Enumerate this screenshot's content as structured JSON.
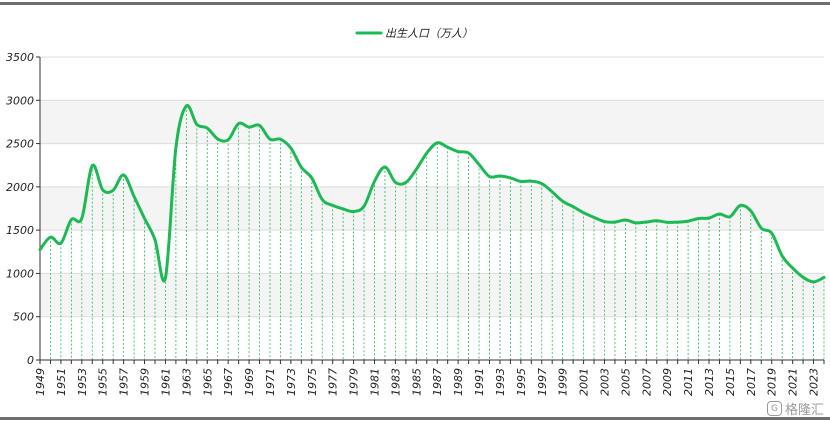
{
  "chart_data": {
    "type": "line",
    "title": "",
    "xlabel": "",
    "ylabel": "",
    "ylim": [
      0,
      3500
    ],
    "yticks": [
      0,
      500,
      1000,
      1500,
      2000,
      2500,
      3000,
      3500
    ],
    "x_tick_labels": [
      "1949",
      "1951",
      "1953",
      "1955",
      "1957",
      "1959",
      "1961",
      "1963",
      "1965",
      "1967",
      "1969",
      "1971",
      "1973",
      "1975",
      "1977",
      "1979",
      "1981",
      "1983",
      "1985",
      "1987",
      "1989",
      "1991",
      "1993",
      "1995",
      "1997",
      "1999",
      "2001",
      "2003",
      "2005",
      "2007",
      "2009",
      "2011",
      "2013",
      "2015",
      "2017",
      "2019",
      "2021",
      "2023"
    ],
    "legend": {
      "position": "top-center"
    },
    "grid": true,
    "series": [
      {
        "name": "出生人口（万人）",
        "color": "#1db954",
        "x": [
          1949,
          1950,
          1951,
          1952,
          1953,
          1954,
          1955,
          1956,
          1957,
          1958,
          1959,
          1960,
          1961,
          1962,
          1963,
          1964,
          1965,
          1966,
          1967,
          1968,
          1969,
          1970,
          1971,
          1972,
          1973,
          1974,
          1975,
          1976,
          1977,
          1978,
          1979,
          1980,
          1981,
          1982,
          1983,
          1984,
          1985,
          1986,
          1987,
          1988,
          1989,
          1990,
          1991,
          1992,
          1993,
          1994,
          1995,
          1996,
          1997,
          1998,
          1999,
          2000,
          2001,
          2002,
          2003,
          2004,
          2005,
          2006,
          2007,
          2008,
          2009,
          2010,
          2011,
          2012,
          2013,
          2014,
          2015,
          2016,
          2017,
          2018,
          2019,
          2020,
          2021,
          2022,
          2023,
          2024
        ],
        "values": [
          1275,
          1419,
          1349,
          1622,
          1637,
          2245,
          1965,
          1961,
          2138,
          1889,
          1635,
          1389,
          949,
          2451,
          2934,
          2721,
          2679,
          2554,
          2543,
          2731,
          2690,
          2710,
          2551,
          2550,
          2447,
          2226,
          2102,
          1853,
          1786,
          1745,
          1715,
          1776,
          2064,
          2230,
          2052,
          2050,
          2202,
          2391,
          2508,
          2457,
          2407,
          2391,
          2258,
          2119,
          2126,
          2104,
          2063,
          2067,
          2038,
          1942,
          1834,
          1771,
          1702,
          1647,
          1599,
          1593,
          1617,
          1584,
          1594,
          1608,
          1591,
          1592,
          1604,
          1635,
          1640,
          1687,
          1655,
          1786,
          1723,
          1523,
          1465,
          1202,
          1062,
          956,
          902,
          954
        ]
      }
    ]
  },
  "watermark": {
    "icon": "G",
    "text": "格隆汇"
  }
}
